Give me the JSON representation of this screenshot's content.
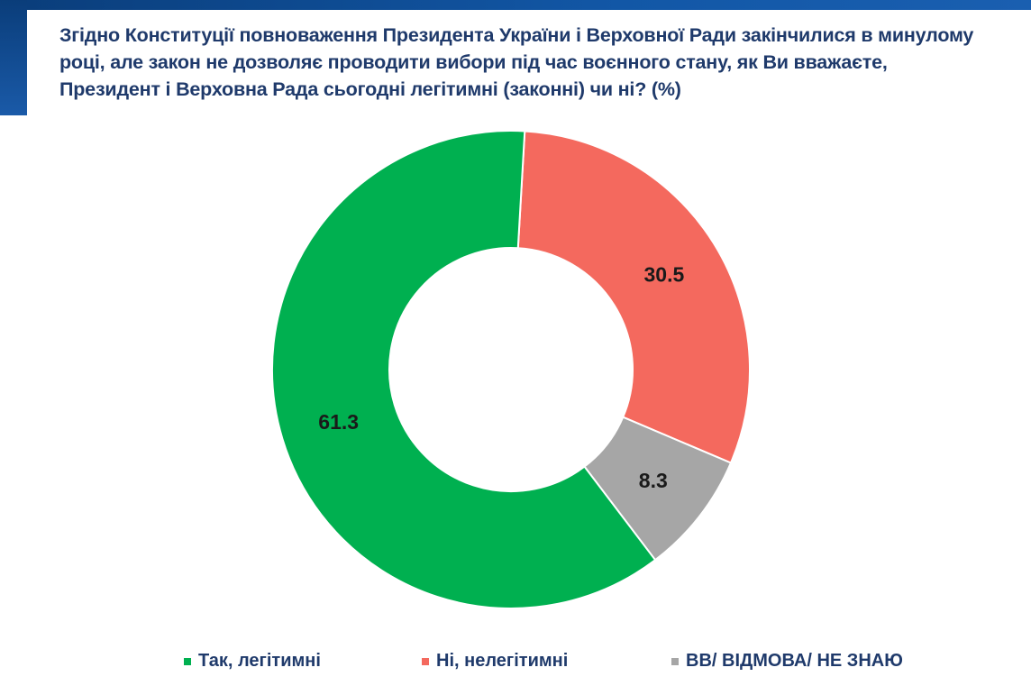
{
  "title": "Згідно Конституції повноваження Президента України і Верховної Ради закінчилися в минулому році, але закон не дозволяє проводити вибори під час воєнного стану, як Ви вважаєте, Президент і Верховна Рада сьогодні легітимні (законні) чи ні? (%)",
  "chart_data": {
    "type": "pie",
    "variant": "donut",
    "title": "Згідно Конституції повноваження Президента України і Верховної Ради закінчилися в минулому році, але закон не дозволяє проводити вибори під час воєнного стану, як Ви вважаєте, Президент і Верховна Рада сьогодні легітимні (законні) чи ні? (%)",
    "legend_position": "bottom",
    "slices": [
      {
        "name": "Ні, нелегітимні",
        "value": 30.5,
        "label": "30.5",
        "color": "#f4695e"
      },
      {
        "name": "ВВ/ ВІДМОВА/ НЕ ЗНАЮ",
        "value": 8.3,
        "label": "8.3",
        "color": "#a6a6a6"
      },
      {
        "name": "Так, легітимні",
        "value": 61.3,
        "label": "61.3",
        "color": "#00b050"
      }
    ],
    "legend": [
      "Так, легітимні",
      "Ні, нелегітимні",
      "ВВ/ ВІДМОВА/ НЕ ЗНАЮ"
    ]
  }
}
